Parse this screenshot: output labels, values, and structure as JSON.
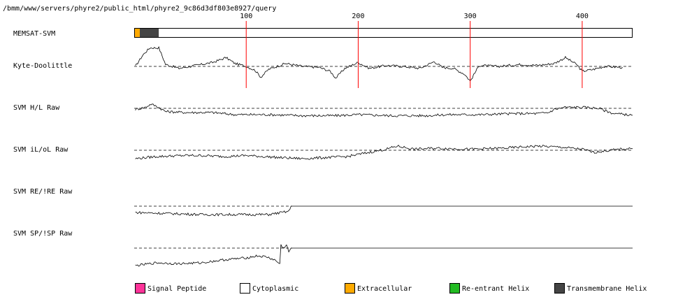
{
  "title": "/bmm/www/servers/phyre2/public_html/phyre2_9c86d3df803e8927/query",
  "colors": {
    "signal_peptide": "#ff3399",
    "cytoplasmic": "#ffffff",
    "extracellular": "#ffaa00",
    "reentrant_helix": "#22bb22",
    "transmembrane_helix": "#444444",
    "ruler": "#ff0000",
    "trace": "#000000"
  },
  "chart_data": {
    "type": "line",
    "sequence_length": 445,
    "x_ticks": [
      100,
      200,
      300,
      400
    ],
    "track_labels": [
      "MEMSAT-SVM",
      "Kyte-Doolittle",
      "SVM H/L Raw",
      "SVM iL/oL Raw",
      "SVM RE/!RE Raw",
      "SVM SP/!SP Raw"
    ],
    "memsat_segments": [
      {
        "type": "extracellular",
        "start": 1,
        "end": 5
      },
      {
        "type": "transmembrane_helix",
        "start": 6,
        "end": 22
      },
      {
        "type": "cytoplasmic",
        "start": 23,
        "end": 445
      }
    ],
    "series": [
      {
        "name": "Kyte-Doolittle",
        "anchors": [
          [
            1,
            0.0
          ],
          [
            8,
            0.6
          ],
          [
            14,
            0.95
          ],
          [
            22,
            0.95
          ],
          [
            28,
            0.1
          ],
          [
            40,
            -0.1
          ],
          [
            55,
            0.05
          ],
          [
            70,
            0.2
          ],
          [
            82,
            0.45
          ],
          [
            90,
            0.15
          ],
          [
            100,
            0.0
          ],
          [
            108,
            -0.2
          ],
          [
            113,
            -0.55
          ],
          [
            120,
            -0.15
          ],
          [
            135,
            0.15
          ],
          [
            150,
            0.0
          ],
          [
            165,
            -0.05
          ],
          [
            175,
            -0.25
          ],
          [
            180,
            -0.6
          ],
          [
            188,
            -0.1
          ],
          [
            200,
            0.2
          ],
          [
            210,
            -0.1
          ],
          [
            225,
            0.05
          ],
          [
            240,
            0.0
          ],
          [
            255,
            -0.1
          ],
          [
            268,
            0.25
          ],
          [
            275,
            -0.05
          ],
          [
            285,
            -0.1
          ],
          [
            295,
            -0.4
          ],
          [
            300,
            -0.75
          ],
          [
            308,
            0.05
          ],
          [
            325,
            0.0
          ],
          [
            345,
            0.1
          ],
          [
            360,
            0.05
          ],
          [
            375,
            0.15
          ],
          [
            385,
            0.45
          ],
          [
            395,
            0.1
          ],
          [
            400,
            -0.25
          ],
          [
            410,
            -0.15
          ],
          [
            420,
            0.0
          ],
          [
            435,
            -0.05
          ],
          [
            436,
            -0.1
          ]
        ]
      },
      {
        "name": "SVM H/L Raw",
        "anchors": [
          [
            1,
            -0.05
          ],
          [
            10,
            0.05
          ],
          [
            15,
            0.2
          ],
          [
            20,
            0.1
          ],
          [
            28,
            -0.15
          ],
          [
            45,
            -0.2
          ],
          [
            70,
            -0.2
          ],
          [
            90,
            -0.3
          ],
          [
            120,
            -0.3
          ],
          [
            150,
            -0.35
          ],
          [
            180,
            -0.35
          ],
          [
            200,
            -0.3
          ],
          [
            230,
            -0.35
          ],
          [
            260,
            -0.35
          ],
          [
            280,
            -0.3
          ],
          [
            310,
            -0.3
          ],
          [
            340,
            -0.25
          ],
          [
            360,
            -0.25
          ],
          [
            370,
            -0.2
          ],
          [
            375,
            -0.05
          ],
          [
            385,
            0.05
          ],
          [
            400,
            0.05
          ],
          [
            415,
            0.0
          ],
          [
            420,
            -0.1
          ],
          [
            428,
            -0.25
          ],
          [
            440,
            -0.3
          ],
          [
            445,
            -0.35
          ]
        ]
      },
      {
        "name": "SVM iL/oL Raw",
        "anchors": [
          [
            1,
            -0.4
          ],
          [
            20,
            -0.3
          ],
          [
            45,
            -0.25
          ],
          [
            60,
            -0.25
          ],
          [
            80,
            -0.3
          ],
          [
            100,
            -0.25
          ],
          [
            130,
            -0.35
          ],
          [
            150,
            -0.4
          ],
          [
            170,
            -0.35
          ],
          [
            190,
            -0.3
          ],
          [
            210,
            -0.1
          ],
          [
            225,
            0.05
          ],
          [
            235,
            0.2
          ],
          [
            250,
            0.05
          ],
          [
            270,
            0.1
          ],
          [
            300,
            0.05
          ],
          [
            330,
            0.1
          ],
          [
            360,
            0.2
          ],
          [
            380,
            0.15
          ],
          [
            400,
            0.05
          ],
          [
            410,
            -0.1
          ],
          [
            425,
            0.0
          ],
          [
            435,
            0.05
          ],
          [
            445,
            0.1
          ]
        ]
      },
      {
        "name": "SVM RE/!RE Raw",
        "anchors": [
          [
            1,
            -0.3
          ],
          [
            30,
            -0.35
          ],
          [
            60,
            -0.4
          ],
          [
            90,
            -0.4
          ],
          [
            120,
            -0.4
          ],
          [
            138,
            -0.25
          ],
          [
            140,
            0.0
          ],
          [
            445,
            0.0
          ]
        ]
      },
      {
        "name": "SVM SP/!SP Raw",
        "anchors": [
          [
            1,
            -0.9
          ],
          [
            20,
            -0.75
          ],
          [
            40,
            -0.8
          ],
          [
            60,
            -0.75
          ],
          [
            80,
            -0.6
          ],
          [
            100,
            -0.5
          ],
          [
            110,
            -0.4
          ],
          [
            118,
            -0.45
          ],
          [
            125,
            -0.6
          ],
          [
            130,
            -0.8
          ],
          [
            131,
            0.15
          ],
          [
            133,
            0.0
          ],
          [
            136,
            0.15
          ],
          [
            138,
            -0.2
          ],
          [
            140,
            0.0
          ],
          [
            445,
            0.0
          ]
        ]
      }
    ],
    "legend": [
      {
        "label": "Signal Peptide",
        "color": "#ff3399"
      },
      {
        "label": "Cytoplasmic",
        "color": "#ffffff"
      },
      {
        "label": "Extracellular",
        "color": "#ffaa00"
      },
      {
        "label": "Re-entrant Helix",
        "color": "#22bb22"
      },
      {
        "label": "Transmembrane Helix",
        "color": "#444444"
      }
    ]
  }
}
